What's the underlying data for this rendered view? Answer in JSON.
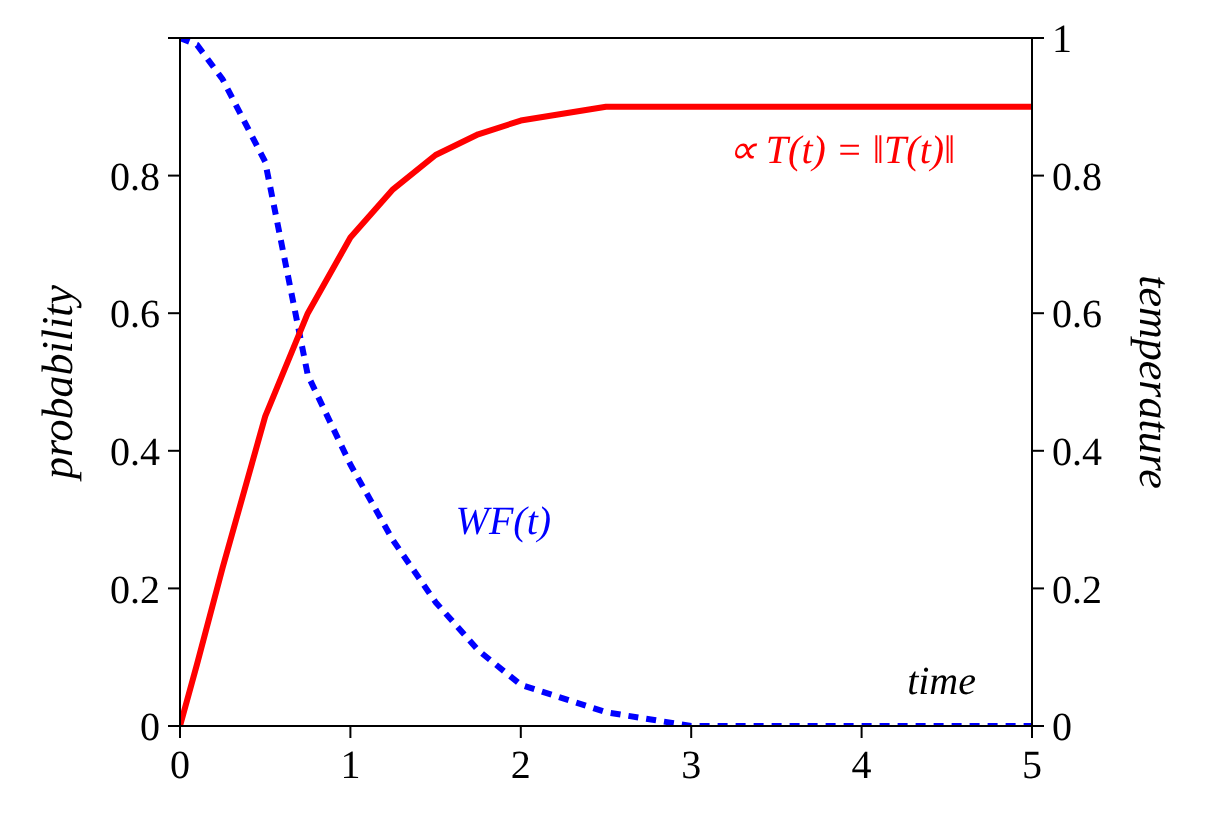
{
  "chart_data": {
    "type": "line",
    "xlabel": "time",
    "ylabel": "probability",
    "y2label": "temperature",
    "x": [
      0,
      0.1,
      0.25,
      0.5,
      0.75,
      1,
      1.25,
      1.5,
      1.75,
      2,
      2.5,
      3,
      4,
      5
    ],
    "series": [
      {
        "name": "WF(t)",
        "color": "#0000ff",
        "line_style": "dashed",
        "values": [
          1,
          0.99,
          0.94,
          0.82,
          0.51,
          0.38,
          0.27,
          0.18,
          0.11,
          0.06,
          0.02,
          0,
          0,
          0
        ]
      },
      {
        "name": "∝ T(t) = ‖T(t)‖",
        "color": "#ff0000",
        "line_style": "solid",
        "axis": "y2",
        "values": [
          0,
          0.09,
          0.23,
          0.45,
          0.6,
          0.71,
          0.78,
          0.83,
          0.86,
          0.88,
          0.9,
          0.9,
          0.9,
          0.9
        ]
      }
    ],
    "xlim": [
      0,
      5
    ],
    "xticks": [
      0,
      1,
      2,
      3,
      4,
      5
    ],
    "ylim": [
      0,
      1
    ],
    "yticks": [
      0,
      0.2,
      0.4,
      0.6,
      0.8,
      {
        "value": 1,
        "label": null
      }
    ],
    "y2lim": [
      0,
      1
    ],
    "y2ticks": [
      0,
      0.2,
      0.4,
      0.6,
      0.8,
      1
    ],
    "grid": false,
    "legend": false,
    "marker": "none"
  }
}
